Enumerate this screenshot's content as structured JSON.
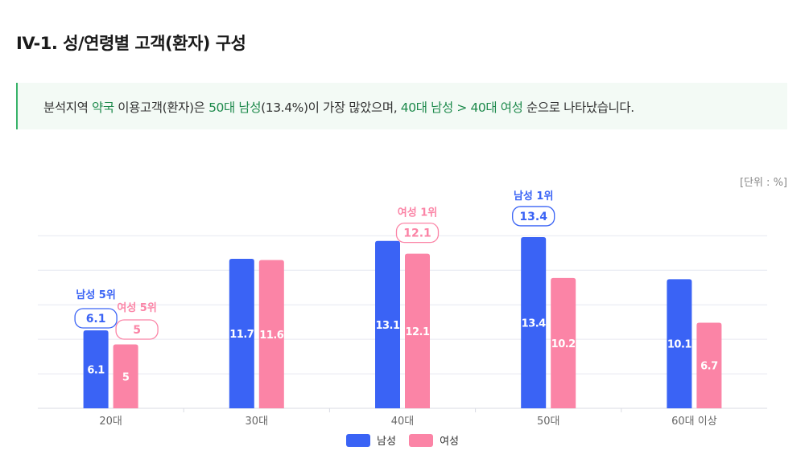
{
  "title": "IV-1. 성/연령별 고객(환자) 구성",
  "summary": {
    "p1": "분석지역 ",
    "h1": "약국",
    "p2": " 이용고객(환자)은 ",
    "h2": "50대 남성",
    "p3": "(13.4%)이 가장 많았으며, ",
    "h3": "40대 남성 > 40대 여성",
    "p4": " 순으로 나타났습니다."
  },
  "unit_label": "[단위 : %]",
  "colors": {
    "male": "#3a63f5",
    "female": "#fb84a6"
  },
  "chart_data": {
    "type": "bar",
    "categories": [
      "20대",
      "30대",
      "40대",
      "50대",
      "60대 이상"
    ],
    "series": [
      {
        "name": "남성",
        "values": [
          6.1,
          11.7,
          13.1,
          13.4,
          10.1
        ]
      },
      {
        "name": "여성",
        "values": [
          5,
          11.6,
          12.1,
          10.2,
          6.7
        ]
      }
    ],
    "value_labels": [
      [
        "6.1",
        "11.7",
        "13.1",
        "13.4",
        "10.1"
      ],
      [
        "5",
        "11.6",
        "12.1",
        "10.2",
        "6.7"
      ]
    ],
    "ylim": [
      0,
      15
    ],
    "grid": true,
    "legend_position": "bottom-center",
    "annotations": [
      {
        "series": 0,
        "category": 0,
        "label": "남성 5위",
        "value": "6.1"
      },
      {
        "series": 1,
        "category": 0,
        "label": "여성 5위",
        "value": "5"
      },
      {
        "series": 1,
        "category": 2,
        "label": "여성 1위",
        "value": "12.1"
      },
      {
        "series": 0,
        "category": 3,
        "label": "남성 1위",
        "value": "13.4"
      }
    ]
  }
}
